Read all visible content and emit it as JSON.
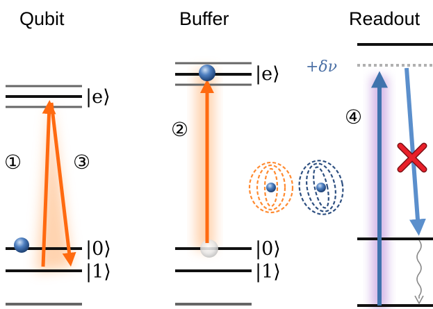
{
  "titles": {
    "qubit": "Qubit",
    "buffer": "Buffer",
    "readout": "Readout"
  },
  "levels": {
    "e": "|e⟩",
    "zero": "|0⟩",
    "one": "|1⟩"
  },
  "steps": {
    "step1": "①",
    "step2": "②",
    "step3": "③",
    "step4": "④"
  },
  "detuning": "+δν",
  "colors": {
    "pump_arrow": "#ff6a10",
    "pump_glow": "#ffb070",
    "readout_arrow": "#3f73ad",
    "readout_glow": "#c7a2e0",
    "blocked_marker": "#e8202a",
    "level_dark": "#111111",
    "level_grey": "#666666",
    "detuned_level": "#b0b0b0",
    "decay_line": "#888888"
  },
  "icons": {
    "atom": "blue-sphere",
    "blocked": "red-cross",
    "decay": "wavy-line"
  }
}
